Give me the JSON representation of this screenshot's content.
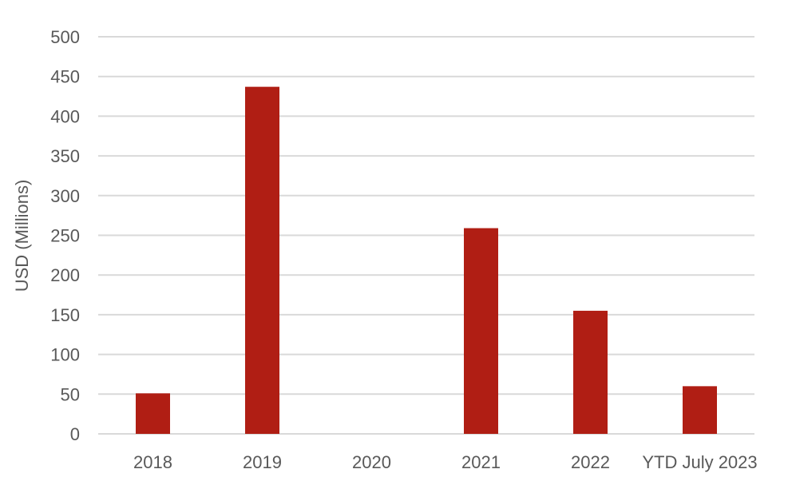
{
  "chart_data": {
    "type": "bar",
    "title": "",
    "xlabel": "",
    "ylabel": "USD (Millions)",
    "ylim": [
      0,
      500
    ],
    "yticks": [
      0,
      50,
      100,
      150,
      200,
      250,
      300,
      350,
      400,
      450,
      500
    ],
    "grid": true,
    "legend": "none",
    "categories": [
      "2018",
      "2019",
      "2020",
      "2021",
      "2022",
      "YTD July 2023"
    ],
    "series": [
      {
        "values": [
          51,
          437,
          0,
          259,
          155,
          60
        ],
        "color": "#b01e14"
      }
    ]
  }
}
